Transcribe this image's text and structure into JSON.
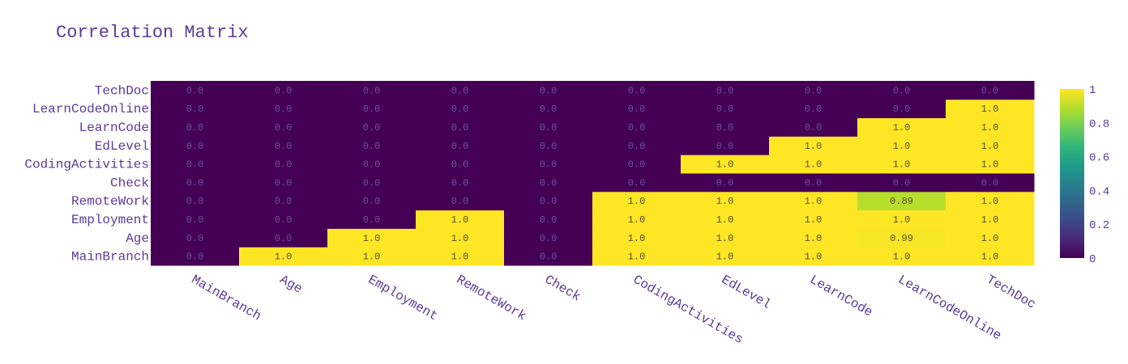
{
  "chart_data": {
    "type": "heatmap",
    "title": "Correlation Matrix",
    "x_categories": [
      "MainBranch",
      "Age",
      "Employment",
      "RemoteWork",
      "Check",
      "CodingActivities",
      "EdLevel",
      "LearnCode",
      "LearnCodeOnline",
      "TechDoc"
    ],
    "y_categories": [
      "MainBranch",
      "Age",
      "Employment",
      "RemoteWork",
      "Check",
      "CodingActivities",
      "EdLevel",
      "LearnCode",
      "LearnCodeOnline",
      "TechDoc"
    ],
    "z": [
      [
        0.0,
        1.0,
        1.0,
        1.0,
        0.0,
        1.0,
        1.0,
        1.0,
        1.0,
        1.0
      ],
      [
        0.0,
        0.0,
        1.0,
        1.0,
        0.0,
        1.0,
        1.0,
        1.0,
        0.99,
        1.0
      ],
      [
        0.0,
        0.0,
        0.0,
        1.0,
        0.0,
        1.0,
        1.0,
        1.0,
        1.0,
        1.0
      ],
      [
        0.0,
        0.0,
        0.0,
        0.0,
        0.0,
        1.0,
        1.0,
        1.0,
        0.89,
        1.0
      ],
      [
        0.0,
        0.0,
        0.0,
        0.0,
        0.0,
        0.0,
        0.0,
        0.0,
        0.0,
        0.0
      ],
      [
        0.0,
        0.0,
        0.0,
        0.0,
        0.0,
        0.0,
        1.0,
        1.0,
        1.0,
        1.0
      ],
      [
        0.0,
        0.0,
        0.0,
        0.0,
        0.0,
        0.0,
        0.0,
        1.0,
        1.0,
        1.0
      ],
      [
        0.0,
        0.0,
        0.0,
        0.0,
        0.0,
        0.0,
        0.0,
        0.0,
        1.0,
        1.0
      ],
      [
        0.0,
        0.0,
        0.0,
        0.0,
        0.0,
        0.0,
        0.0,
        0.0,
        0.0,
        1.0
      ],
      [
        0.0,
        0.0,
        0.0,
        0.0,
        0.0,
        0.0,
        0.0,
        0.0,
        0.0,
        0.0
      ]
    ],
    "text": [
      [
        "0.0",
        "1.0",
        "1.0",
        "1.0",
        "0.0",
        "1.0",
        "1.0",
        "1.0",
        "1.0",
        "1.0"
      ],
      [
        "0.0",
        "0.0",
        "1.0",
        "1.0",
        "0.0",
        "1.0",
        "1.0",
        "1.0",
        "0.99",
        "1.0"
      ],
      [
        "0.0",
        "0.0",
        "0.0",
        "1.0",
        "0.0",
        "1.0",
        "1.0",
        "1.0",
        "1.0",
        "1.0"
      ],
      [
        "0.0",
        "0.0",
        "0.0",
        "0.0",
        "0.0",
        "1.0",
        "1.0",
        "1.0",
        "0.89",
        "1.0"
      ],
      [
        "0.0",
        "0.0",
        "0.0",
        "0.0",
        "0.0",
        "0.0",
        "0.0",
        "0.0",
        "0.0",
        "0.0"
      ],
      [
        "0.0",
        "0.0",
        "0.0",
        "0.0",
        "0.0",
        "0.0",
        "1.0",
        "1.0",
        "1.0",
        "1.0"
      ],
      [
        "0.0",
        "0.0",
        "0.0",
        "0.0",
        "0.0",
        "0.0",
        "0.0",
        "1.0",
        "1.0",
        "1.0"
      ],
      [
        "0.0",
        "0.0",
        "0.0",
        "0.0",
        "0.0",
        "0.0",
        "0.0",
        "0.0",
        "1.0",
        "1.0"
      ],
      [
        "0.0",
        "0.0",
        "0.0",
        "0.0",
        "0.0",
        "0.0",
        "0.0",
        "0.0",
        "0.0",
        "1.0"
      ],
      [
        "0.0",
        "0.0",
        "0.0",
        "0.0",
        "0.0",
        "0.0",
        "0.0",
        "0.0",
        "0.0",
        "0.0"
      ]
    ],
    "colorscale": "Viridis",
    "zrange": [
      0,
      1
    ],
    "colorbar_ticks": [
      {
        "value": 0,
        "label": "0"
      },
      {
        "value": 0.2,
        "label": "0.2"
      },
      {
        "value": 0.4,
        "label": "0.4"
      },
      {
        "value": 0.6,
        "label": "0.6"
      },
      {
        "value": 0.8,
        "label": "0.8"
      },
      {
        "value": 1,
        "label": "1"
      }
    ],
    "colors": {
      "label": "#5b3a99",
      "low": "#440154",
      "high": "#fde725"
    }
  }
}
